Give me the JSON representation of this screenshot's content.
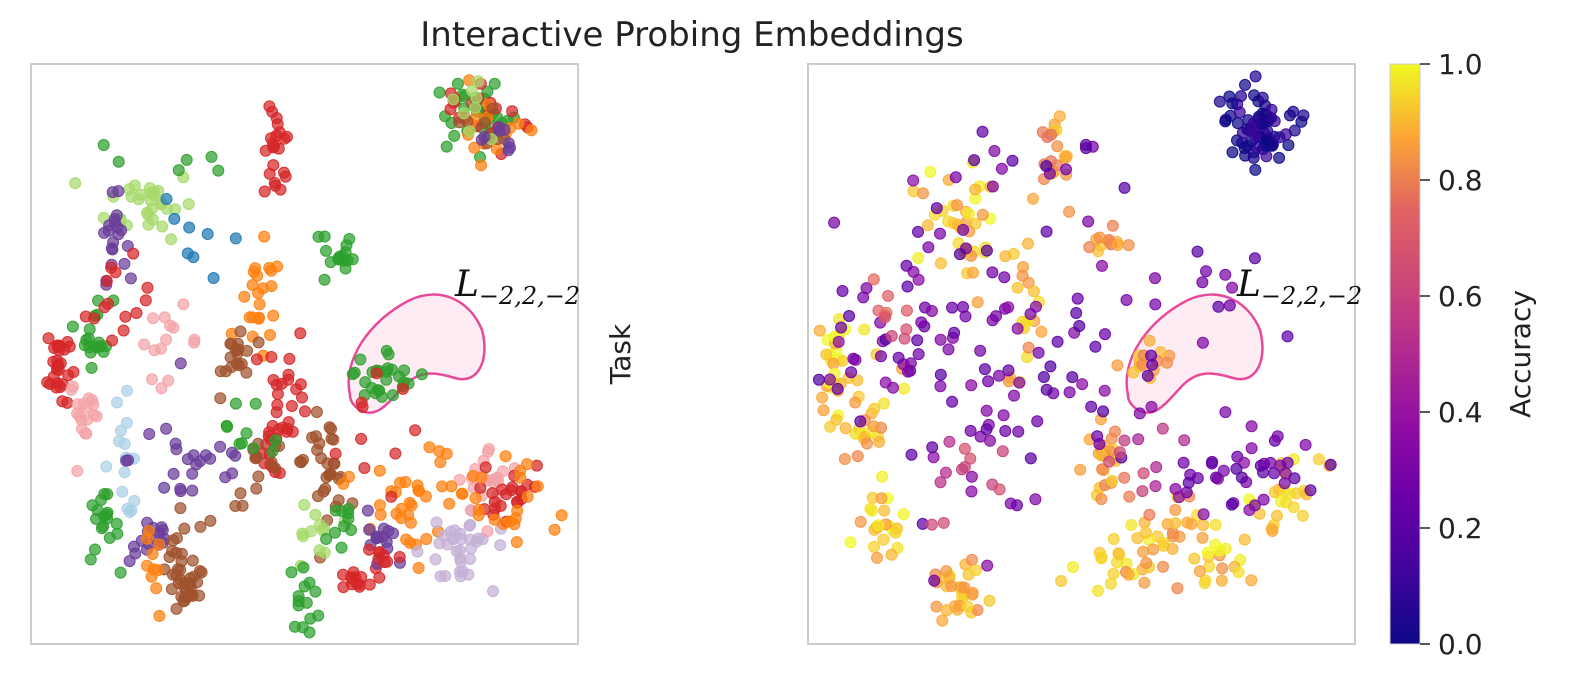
{
  "chart_data": [
    {
      "type": "scatter",
      "panel": "left",
      "title": "Interactive Probing Embeddings",
      "ylabel": "Task",
      "grid": false,
      "xlim": [
        0,
        100
      ],
      "ylim": [
        0,
        100
      ],
      "annotation": {
        "base": "L",
        "subscript": "−2,2,−2",
        "x": 78,
        "y": 62
      },
      "highlight_region": {
        "label": "L−2,2,−2",
        "fill": "#fde7f1",
        "stroke": "#e84a9a"
      },
      "palette": {
        "green": "#2ca02c",
        "light_green": "#a6d96a",
        "red": "#d62728",
        "orange": "#ff7f0e",
        "brown": "#a0522d",
        "purple": "#6a3d9a",
        "light_purple": "#c5b0d5",
        "pink": "#f4a3a8",
        "light_blue": "#abd0e6",
        "blue": "#1f78b4"
      },
      "clusters": [
        {
          "color": "green",
          "cx": 82,
          "cy": 91,
          "sx": 4,
          "sy": 3,
          "n": 30,
          "angle": -40
        },
        {
          "color": "red",
          "cx": 83,
          "cy": 90,
          "sx": 4,
          "sy": 3,
          "n": 18,
          "angle": -40
        },
        {
          "color": "orange",
          "cx": 84,
          "cy": 89,
          "sx": 4,
          "sy": 3,
          "n": 14,
          "angle": -40
        },
        {
          "color": "brown",
          "cx": 82,
          "cy": 90,
          "sx": 3,
          "sy": 2,
          "n": 10,
          "angle": -40
        },
        {
          "color": "light_green",
          "cx": 80,
          "cy": 92,
          "sx": 3,
          "sy": 2,
          "n": 8,
          "angle": -40
        },
        {
          "color": "purple",
          "cx": 85,
          "cy": 88,
          "sx": 3,
          "sy": 2,
          "n": 8,
          "angle": -40
        },
        {
          "color": "red",
          "cx": 45,
          "cy": 84,
          "sx": 1.2,
          "sy": 4,
          "n": 22,
          "angle": 0
        },
        {
          "color": "green",
          "cx": 56,
          "cy": 67,
          "sx": 1.5,
          "sy": 3,
          "n": 16,
          "angle": 0
        },
        {
          "color": "green",
          "cx": 64,
          "cy": 47,
          "sx": 4,
          "sy": 3,
          "n": 26,
          "angle": -40
        },
        {
          "color": "light_green",
          "cx": 22,
          "cy": 76,
          "sx": 4,
          "sy": 3,
          "n": 30,
          "angle": 0
        },
        {
          "color": "purple",
          "cx": 15,
          "cy": 70,
          "sx": 1.2,
          "sy": 3.5,
          "n": 20,
          "angle": 0
        },
        {
          "color": "red",
          "cx": 5,
          "cy": 48,
          "sx": 1,
          "sy": 4,
          "n": 28,
          "angle": 0
        },
        {
          "color": "green",
          "cx": 12,
          "cy": 54,
          "sx": 1.5,
          "sy": 3,
          "n": 18,
          "angle": 0
        },
        {
          "color": "red",
          "cx": 16,
          "cy": 58,
          "sx": 3,
          "sy": 4,
          "n": 14,
          "angle": 0
        },
        {
          "color": "pink",
          "cx": 10,
          "cy": 40,
          "sx": 1.5,
          "sy": 3,
          "n": 18,
          "angle": 0
        },
        {
          "color": "pink",
          "cx": 25,
          "cy": 52,
          "sx": 3,
          "sy": 3,
          "n": 14,
          "angle": 0
        },
        {
          "color": "light_blue",
          "cx": 17,
          "cy": 32,
          "sx": 2,
          "sy": 5,
          "n": 16,
          "angle": 0
        },
        {
          "color": "green",
          "cx": 13,
          "cy": 20,
          "sx": 1.5,
          "sy": 3,
          "n": 18,
          "angle": 0
        },
        {
          "color": "purple",
          "cx": 22,
          "cy": 18,
          "sx": 2,
          "sy": 2,
          "n": 16,
          "angle": 0
        },
        {
          "color": "purple",
          "cx": 30,
          "cy": 32,
          "sx": 6,
          "sy": 5,
          "n": 24,
          "angle": 0
        },
        {
          "color": "brown",
          "cx": 28,
          "cy": 15,
          "sx": 3,
          "sy": 4,
          "n": 18,
          "angle": 0
        },
        {
          "color": "brown",
          "cx": 28,
          "cy": 9,
          "sx": 1.5,
          "sy": 2,
          "n": 22,
          "angle": 0
        },
        {
          "color": "orange",
          "cx": 22,
          "cy": 11,
          "sx": 1,
          "sy": 4,
          "n": 10,
          "angle": 0
        },
        {
          "color": "orange",
          "cx": 42,
          "cy": 58,
          "sx": 2,
          "sy": 5,
          "n": 22,
          "angle": 0
        },
        {
          "color": "brown",
          "cx": 38,
          "cy": 50,
          "sx": 1.5,
          "sy": 3,
          "n": 18,
          "angle": 0
        },
        {
          "color": "red",
          "cx": 47,
          "cy": 44,
          "sx": 2,
          "sy": 5,
          "n": 22,
          "angle": 0
        },
        {
          "color": "red",
          "cx": 44,
          "cy": 34,
          "sx": 1.5,
          "sy": 2.5,
          "n": 16,
          "angle": 0
        },
        {
          "color": "brown",
          "cx": 44,
          "cy": 30,
          "sx": 4,
          "sy": 3,
          "n": 14,
          "angle": 0
        },
        {
          "color": "brown",
          "cx": 54,
          "cy": 31,
          "sx": 2,
          "sy": 4,
          "n": 28,
          "angle": 0
        },
        {
          "color": "light_green",
          "cx": 51,
          "cy": 18,
          "sx": 2,
          "sy": 4,
          "n": 12,
          "angle": 0
        },
        {
          "color": "green",
          "cx": 50,
          "cy": 8,
          "sx": 1.5,
          "sy": 3,
          "n": 14,
          "angle": 0
        },
        {
          "color": "red",
          "cx": 59,
          "cy": 11,
          "sx": 2,
          "sy": 1,
          "n": 14,
          "angle": 0
        },
        {
          "color": "orange",
          "cx": 66,
          "cy": 22,
          "sx": 5,
          "sy": 4,
          "n": 24,
          "angle": -40
        },
        {
          "color": "purple",
          "cx": 64,
          "cy": 18,
          "sx": 3,
          "sy": 2,
          "n": 14,
          "angle": -40
        },
        {
          "color": "red",
          "cx": 64,
          "cy": 15,
          "sx": 2,
          "sy": 1.5,
          "n": 8,
          "angle": 0
        },
        {
          "color": "light_purple",
          "cx": 78,
          "cy": 15,
          "sx": 4,
          "sy": 3,
          "n": 24,
          "angle": -30
        },
        {
          "color": "light_purple",
          "cx": 82,
          "cy": 20,
          "sx": 3,
          "sy": 2,
          "n": 10,
          "angle": -30
        },
        {
          "color": "pink",
          "cx": 84,
          "cy": 28,
          "sx": 3,
          "sy": 3,
          "n": 22,
          "angle": 0
        },
        {
          "color": "red",
          "cx": 87,
          "cy": 26,
          "sx": 2,
          "sy": 4,
          "n": 22,
          "angle": -40
        },
        {
          "color": "orange",
          "cx": 90,
          "cy": 24,
          "sx": 3,
          "sy": 4,
          "n": 18,
          "angle": -40
        },
        {
          "color": "orange",
          "cx": 75,
          "cy": 30,
          "sx": 4,
          "sy": 3,
          "n": 14,
          "angle": 0
        },
        {
          "color": "green",
          "cx": 56,
          "cy": 20,
          "sx": 2,
          "sy": 3,
          "n": 10,
          "angle": 0
        },
        {
          "color": "green",
          "cx": 39,
          "cy": 38,
          "sx": 5,
          "sy": 5,
          "n": 10,
          "angle": 0
        },
        {
          "color": "red",
          "cx": 60,
          "cy": 35,
          "sx": 5,
          "sy": 5,
          "n": 10,
          "angle": 0
        },
        {
          "color": "blue",
          "cx": 28,
          "cy": 68,
          "sx": 4,
          "sy": 5,
          "n": 8,
          "angle": 0
        },
        {
          "color": "green",
          "cx": 22,
          "cy": 83,
          "sx": 7,
          "sy": 2,
          "n": 6,
          "angle": 0
        }
      ]
    },
    {
      "type": "scatter",
      "panel": "right",
      "ylabel": "",
      "grid": false,
      "xlim": [
        0,
        100
      ],
      "ylim": [
        0,
        100
      ],
      "annotation": {
        "base": "L",
        "subscript": "−2,2,−2",
        "x": 78,
        "y": 62
      },
      "highlight_region": {
        "label": "L−2,2,−2",
        "fill": "#fde7f1",
        "stroke": "#e84a9a"
      },
      "clusters": [
        {
          "acc": 0.03,
          "cx": 82,
          "cy": 89,
          "sx": 4,
          "sy": 3,
          "n": 70,
          "angle": -40
        },
        {
          "acc": 0.85,
          "cx": 45,
          "cy": 84,
          "sx": 1.2,
          "sy": 4,
          "n": 20,
          "angle": 0
        },
        {
          "acc": 0.92,
          "cx": 29,
          "cy": 72,
          "sx": 4,
          "sy": 5,
          "n": 40,
          "angle": 0
        },
        {
          "acc": 0.95,
          "cx": 5,
          "cy": 48,
          "sx": 1.5,
          "sy": 5,
          "n": 30,
          "angle": 0
        },
        {
          "acc": 0.9,
          "cx": 11,
          "cy": 38,
          "sx": 2.5,
          "sy": 5,
          "n": 26,
          "angle": 0
        },
        {
          "acc": 0.93,
          "cx": 13,
          "cy": 20,
          "sx": 2,
          "sy": 3,
          "n": 22,
          "angle": 0
        },
        {
          "acc": 0.9,
          "cx": 27,
          "cy": 10,
          "sx": 2.5,
          "sy": 3,
          "n": 30,
          "angle": 0
        },
        {
          "acc": 0.9,
          "cx": 40,
          "cy": 56,
          "sx": 1.5,
          "sy": 5,
          "n": 18,
          "angle": 0
        },
        {
          "acc": 0.85,
          "cx": 54,
          "cy": 32,
          "sx": 2,
          "sy": 4,
          "n": 24,
          "angle": 0
        },
        {
          "acc": 0.9,
          "cx": 58,
          "cy": 14,
          "sx": 4,
          "sy": 3,
          "n": 24,
          "angle": 0
        },
        {
          "acc": 0.88,
          "cx": 65,
          "cy": 19,
          "sx": 4,
          "sy": 4,
          "n": 24,
          "angle": -40
        },
        {
          "acc": 0.92,
          "cx": 75,
          "cy": 14,
          "sx": 3,
          "sy": 2,
          "n": 18,
          "angle": -30
        },
        {
          "acc": 0.93,
          "cx": 86,
          "cy": 25,
          "sx": 3,
          "sy": 4,
          "n": 24,
          "angle": -40
        },
        {
          "acc": 0.88,
          "cx": 63,
          "cy": 48,
          "sx": 3,
          "sy": 2,
          "n": 14,
          "angle": -40
        },
        {
          "acc": 0.85,
          "cx": 55,
          "cy": 69,
          "sx": 1.5,
          "sy": 2,
          "n": 12,
          "angle": 0
        },
        {
          "acc": 0.27,
          "cx": 40,
          "cy": 45,
          "sx": 14,
          "sy": 14,
          "n": 90,
          "angle": 0
        },
        {
          "acc": 0.27,
          "cx": 15,
          "cy": 55,
          "sx": 6,
          "sy": 8,
          "n": 36,
          "angle": 0
        },
        {
          "acc": 0.27,
          "cx": 80,
          "cy": 30,
          "sx": 7,
          "sy": 6,
          "n": 40,
          "angle": 0
        },
        {
          "acc": 0.25,
          "cx": 72,
          "cy": 60,
          "sx": 4,
          "sy": 4,
          "n": 10,
          "angle": 0
        },
        {
          "acc": 0.25,
          "cx": 35,
          "cy": 80,
          "sx": 8,
          "sy": 5,
          "n": 14,
          "angle": 0
        },
        {
          "acc": 0.6,
          "cx": 30,
          "cy": 28,
          "sx": 5,
          "sy": 4,
          "n": 12,
          "angle": 0
        },
        {
          "acc": 0.55,
          "cx": 62,
          "cy": 30,
          "sx": 5,
          "sy": 4,
          "n": 10,
          "angle": 0
        },
        {
          "acc": 0.7,
          "cx": 15,
          "cy": 55,
          "sx": 3,
          "sy": 3,
          "n": 10,
          "angle": 0
        }
      ]
    }
  ],
  "colorbar": {
    "label": "Accuracy",
    "min": 0.0,
    "max": 1.0,
    "ticks": [
      "0.0",
      "0.2",
      "0.4",
      "0.6",
      "0.8",
      "1.0"
    ],
    "colormap": "plasma"
  }
}
